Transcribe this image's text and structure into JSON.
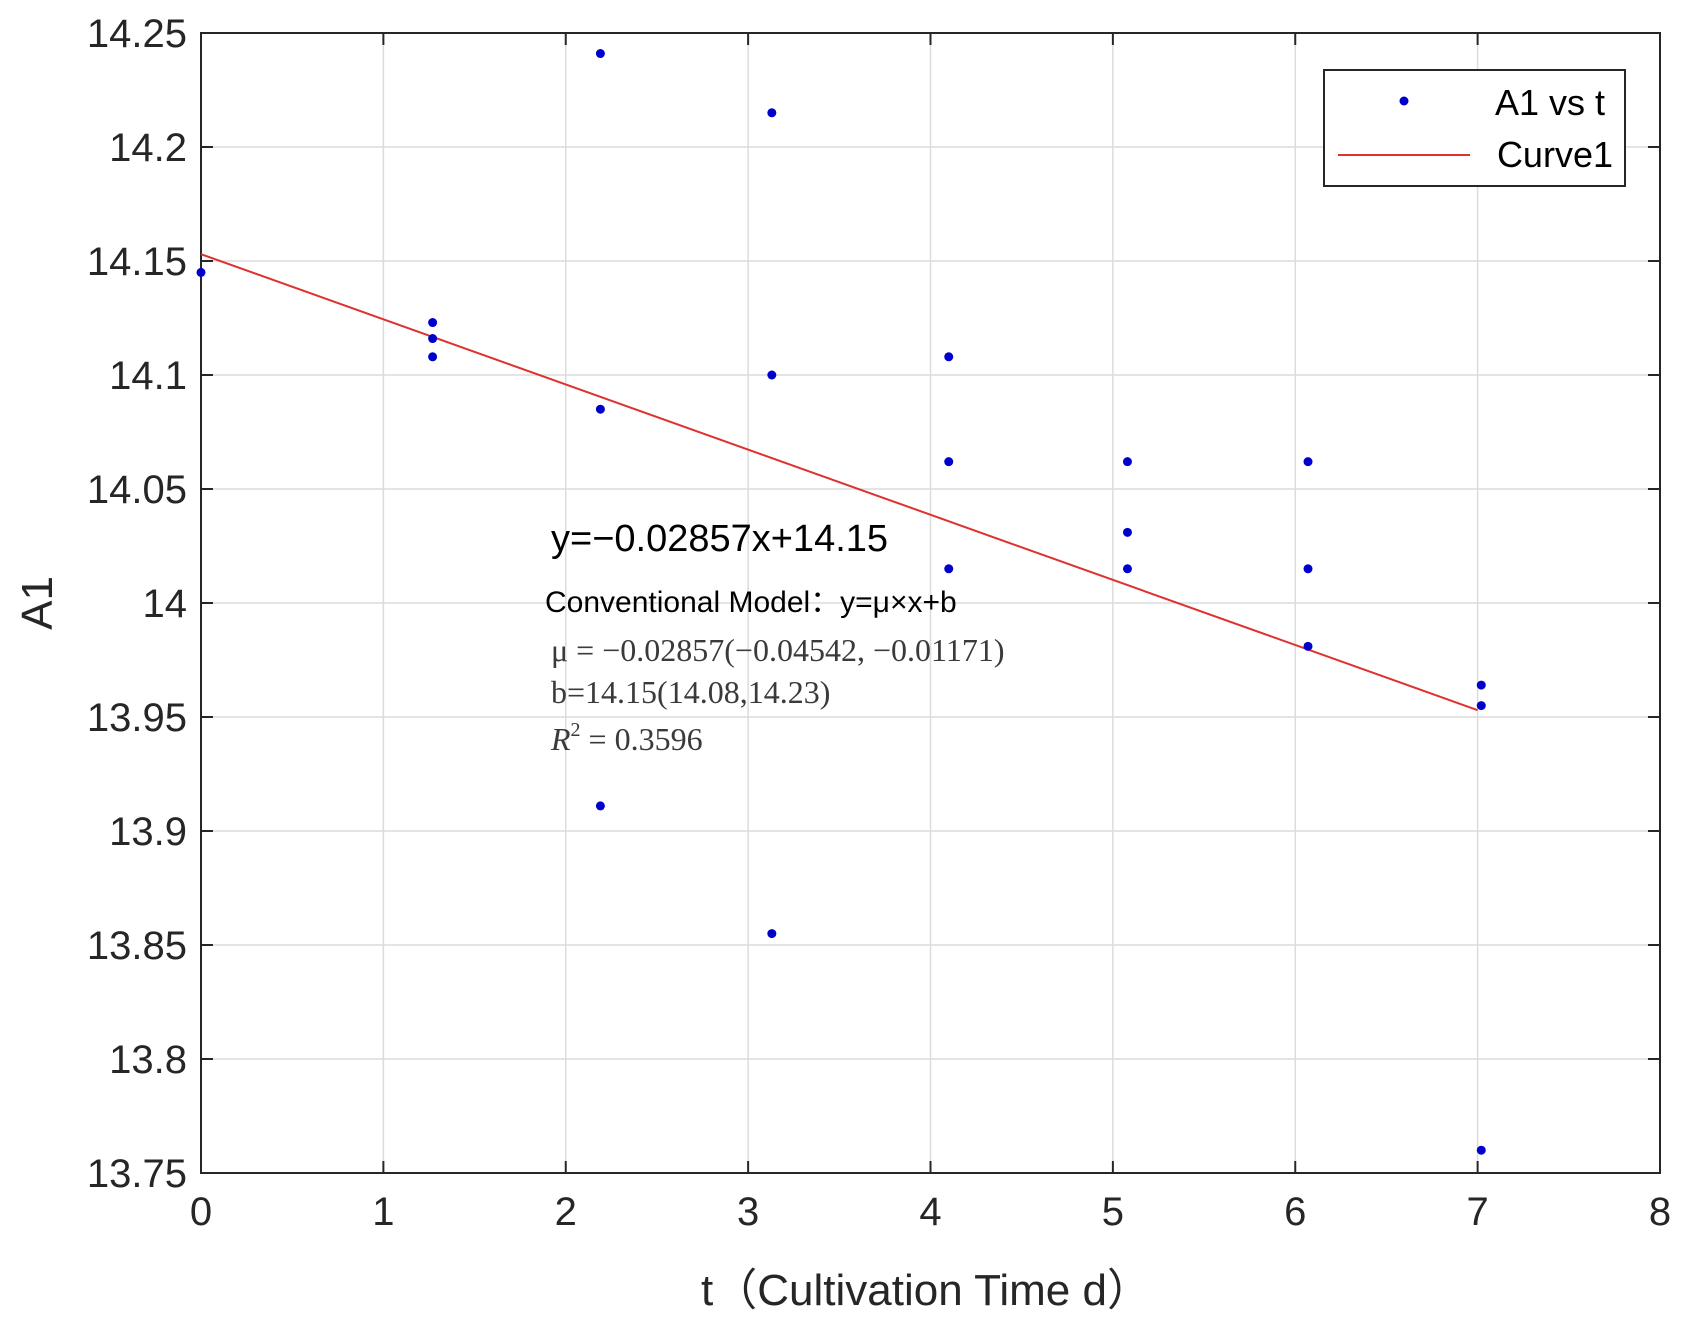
{
  "chart_data": {
    "type": "scatter",
    "xlabel": "t（Cultivation Time d）",
    "ylabel": "A1",
    "xlim": [
      0,
      8
    ],
    "ylim": [
      13.75,
      14.25
    ],
    "xticks": [
      0,
      1,
      2,
      3,
      4,
      5,
      6,
      7,
      8
    ],
    "xtick_labels": [
      "0",
      "1",
      "2",
      "3",
      "4",
      "5",
      "6",
      "7",
      "8"
    ],
    "yticks": [
      13.75,
      13.8,
      13.85,
      13.9,
      13.95,
      14,
      14.05,
      14.1,
      14.15,
      14.2,
      14.25
    ],
    "ytick_labels": [
      "13.75",
      "13.8",
      "13.85",
      "13.9",
      "13.95",
      "14",
      "14.05",
      "14.1",
      "14.15",
      "14.2",
      "14.25"
    ],
    "grid": true,
    "legend_position": "top-right",
    "series": [
      {
        "name": "A1 vs t",
        "kind": "scatter",
        "color": "#0000cc",
        "points": [
          {
            "x": 0,
            "y": 14.145
          },
          {
            "x": 1.27,
            "y": 14.123
          },
          {
            "x": 1.27,
            "y": 14.116
          },
          {
            "x": 1.27,
            "y": 14.108
          },
          {
            "x": 2.19,
            "y": 14.241
          },
          {
            "x": 2.19,
            "y": 14.085
          },
          {
            "x": 2.19,
            "y": 13.911
          },
          {
            "x": 3.13,
            "y": 14.215
          },
          {
            "x": 3.13,
            "y": 14.1
          },
          {
            "x": 3.13,
            "y": 13.855
          },
          {
            "x": 4.1,
            "y": 14.108
          },
          {
            "x": 4.1,
            "y": 14.062
          },
          {
            "x": 4.1,
            "y": 14.015
          },
          {
            "x": 5.08,
            "y": 14.062
          },
          {
            "x": 5.08,
            "y": 14.031
          },
          {
            "x": 5.08,
            "y": 14.015
          },
          {
            "x": 6.07,
            "y": 14.062
          },
          {
            "x": 6.07,
            "y": 14.015
          },
          {
            "x": 6.07,
            "y": 13.981
          },
          {
            "x": 7.02,
            "y": 13.964
          },
          {
            "x": 7.02,
            "y": 13.955
          },
          {
            "x": 7.02,
            "y": 13.76
          }
        ]
      },
      {
        "name": "Curve1",
        "kind": "line",
        "color": "#e03030",
        "points": [
          {
            "x": 0,
            "y": 14.153
          },
          {
            "x": 7,
            "y": 13.953
          }
        ]
      }
    ],
    "annotations": {
      "equation": "y=−0.02857x+14.15",
      "model": "Conventional Model：y=μ×x+b",
      "mu": "μ = −0.02857(−0.04542, −0.01171)",
      "b": "b=14.15(14.08,14.23)",
      "r2_symbol": "R",
      "r2_exp": "2",
      "r2_value": " = 0.3596"
    }
  }
}
